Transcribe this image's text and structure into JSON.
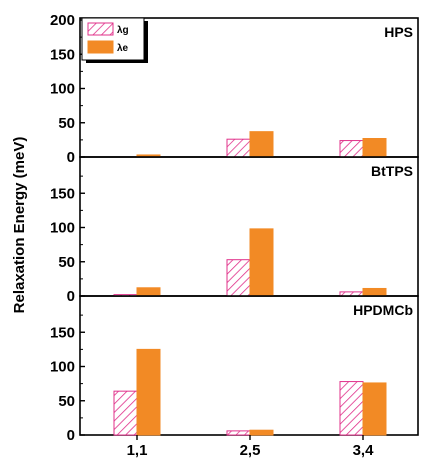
{
  "chart_data": {
    "type": "bar",
    "ylabel": "Relaxation Energy (meV)",
    "categories": [
      "1,1",
      "2,5",
      "3,4"
    ],
    "ylim": [
      0,
      200
    ],
    "yticks": [
      0,
      50,
      100,
      150,
      200
    ],
    "legend": {
      "placement": "top-left",
      "entries": [
        {
          "name": "λg",
          "style": "hatched",
          "color": "#e0308a"
        },
        {
          "name": "λe",
          "style": "solid",
          "color": "#f28a25"
        }
      ]
    },
    "panels": [
      {
        "title": "HPS",
        "series": [
          {
            "name": "λg",
            "values": [
              0,
              26,
              24
            ]
          },
          {
            "name": "λe",
            "values": [
              3,
              37,
              27
            ]
          }
        ]
      },
      {
        "title": "BtTPS",
        "series": [
          {
            "name": "λg",
            "values": [
              2,
              53,
              6
            ]
          },
          {
            "name": "λe",
            "values": [
              12,
              98,
              11
            ]
          }
        ]
      },
      {
        "title": "HPDMCb",
        "series": [
          {
            "name": "λg",
            "values": [
              64,
              6,
              78
            ]
          },
          {
            "name": "λe",
            "values": [
              125,
              7,
              76
            ]
          }
        ]
      }
    ]
  }
}
